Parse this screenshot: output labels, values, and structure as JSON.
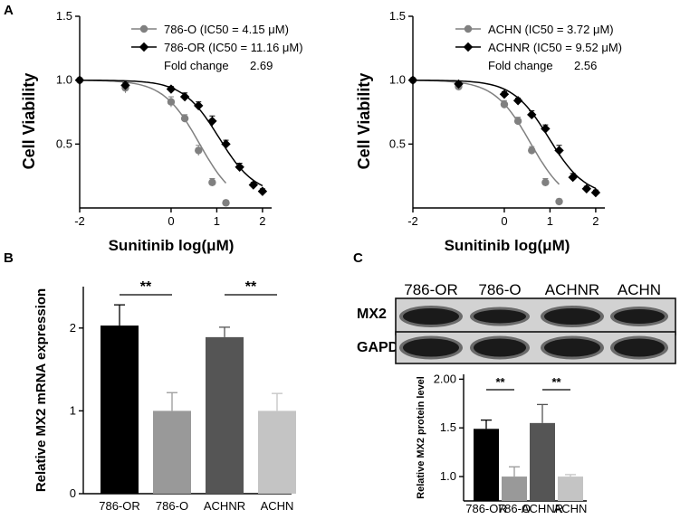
{
  "panels": {
    "a": "A",
    "b": "B",
    "c": "C"
  },
  "chart_data": [
    {
      "id": "A1",
      "type": "line",
      "xlabel": "Sunitinib log(μM)",
      "ylabel": "Cell Viability",
      "xlim": [
        -2,
        2.2
      ],
      "ylim": [
        0,
        1.5
      ],
      "xticks": [
        "-2",
        "0",
        "1",
        "2"
      ],
      "xtick_values": [
        -2,
        0,
        1,
        2
      ],
      "yticks": [
        "0.5",
        "1.0",
        "1.5"
      ],
      "ytick_values": [
        0.5,
        1.0,
        1.5
      ],
      "series": [
        {
          "name": "786-O  (IC50 = 4.15 μM)",
          "color": "#808080",
          "marker": "circle",
          "x": [
            -2,
            -1,
            0,
            0.3,
            0.6,
            0.9,
            1.2
          ],
          "y": [
            1.0,
            0.94,
            0.83,
            0.7,
            0.45,
            0.2,
            0.04
          ],
          "err": [
            0.02,
            0.04,
            0.04,
            0.03,
            0.04,
            0.03,
            0.02
          ],
          "ic50_log": 0.618
        },
        {
          "name": "786-OR  (IC50 = 11.16 μM)",
          "color": "#000000",
          "marker": "diamond",
          "x": [
            -2,
            -1,
            0,
            0.3,
            0.6,
            0.9,
            1.2,
            1.5,
            1.8,
            2.0
          ],
          "y": [
            1.0,
            0.96,
            0.93,
            0.87,
            0.8,
            0.68,
            0.5,
            0.32,
            0.18,
            0.13
          ],
          "err": [
            0.01,
            0.02,
            0.02,
            0.03,
            0.03,
            0.04,
            0.03,
            0.03,
            0.02,
            0.02
          ],
          "ic50_log": 1.048
        }
      ],
      "annotation": {
        "label": "Fold change",
        "value": "2.69"
      }
    },
    {
      "id": "A2",
      "type": "line",
      "xlabel": "Sunitinib log(μM)",
      "ylabel": "Cell Viability",
      "xlim": [
        -2,
        2.2
      ],
      "ylim": [
        0,
        1.5
      ],
      "xticks": [
        "-2",
        "0",
        "1",
        "2"
      ],
      "xtick_values": [
        -2,
        0,
        1,
        2
      ],
      "yticks": [
        "0.5",
        "1.0",
        "1.5"
      ],
      "ytick_values": [
        0.5,
        1.0,
        1.5
      ],
      "series": [
        {
          "name": "ACHN  (IC50 = 3.72 μM)",
          "color": "#808080",
          "marker": "circle",
          "x": [
            -2,
            -1,
            0,
            0.3,
            0.6,
            0.9,
            1.2
          ],
          "y": [
            1.0,
            0.95,
            0.81,
            0.68,
            0.45,
            0.2,
            0.05
          ],
          "err": [
            0.02,
            0.03,
            0.03,
            0.03,
            0.03,
            0.03,
            0.02
          ],
          "ic50_log": 0.571
        },
        {
          "name": "ACHNR  (IC50 = 9.52 μM)",
          "color": "#000000",
          "marker": "diamond",
          "x": [
            -2,
            -1,
            0,
            0.3,
            0.6,
            0.9,
            1.2,
            1.5,
            1.8,
            2.0
          ],
          "y": [
            1.0,
            0.97,
            0.89,
            0.84,
            0.73,
            0.62,
            0.45,
            0.24,
            0.15,
            0.12
          ],
          "err": [
            0.01,
            0.02,
            0.02,
            0.02,
            0.03,
            0.03,
            0.04,
            0.03,
            0.02,
            0.02
          ],
          "ic50_log": 0.979
        }
      ],
      "annotation": {
        "label": "Fold change",
        "value": "2.56"
      }
    },
    {
      "id": "B",
      "type": "bar",
      "ylabel": "Relative MX2 mRNA expression",
      "categories": [
        "786-OR",
        "786-O",
        "ACHNR",
        "ACHN"
      ],
      "values": [
        2.03,
        1.0,
        1.89,
        1.0
      ],
      "errors": [
        0.25,
        0.22,
        0.12,
        0.21
      ],
      "colors": [
        "#000000",
        "#999999",
        "#555555",
        "#c4c4c4"
      ],
      "ylim": [
        0,
        2.5
      ],
      "yticks": [
        "0",
        "1",
        "2"
      ],
      "ytick_values": [
        0,
        1,
        2
      ],
      "significance": [
        {
          "pair": [
            0,
            1
          ],
          "label": "**"
        },
        {
          "pair": [
            2,
            3
          ],
          "label": "**"
        }
      ]
    },
    {
      "id": "C",
      "type": "bar",
      "ylabel": "Relative MX2 protein level",
      "categories": [
        "786-OR",
        "786-O",
        "ACHNR",
        "ACHN"
      ],
      "values": [
        1.49,
        1.0,
        1.55,
        1.0
      ],
      "errors": [
        0.09,
        0.1,
        0.19,
        0.02
      ],
      "colors": [
        "#000000",
        "#999999",
        "#555555",
        "#c4c4c4"
      ],
      "ylim": [
        0.75,
        2.05
      ],
      "yticks": [
        "1.0",
        "1.5",
        "2.00"
      ],
      "ytick_values": [
        1.0,
        1.5,
        2.0
      ],
      "significance": [
        {
          "pair": [
            0,
            1
          ],
          "label": "**"
        },
        {
          "pair": [
            2,
            3
          ],
          "label": "**"
        }
      ]
    }
  ],
  "western_blot": {
    "lanes": [
      "786-OR",
      "786-O",
      "ACHNR",
      "ACHN"
    ],
    "rows": [
      "MX2",
      "GAPDH"
    ]
  }
}
